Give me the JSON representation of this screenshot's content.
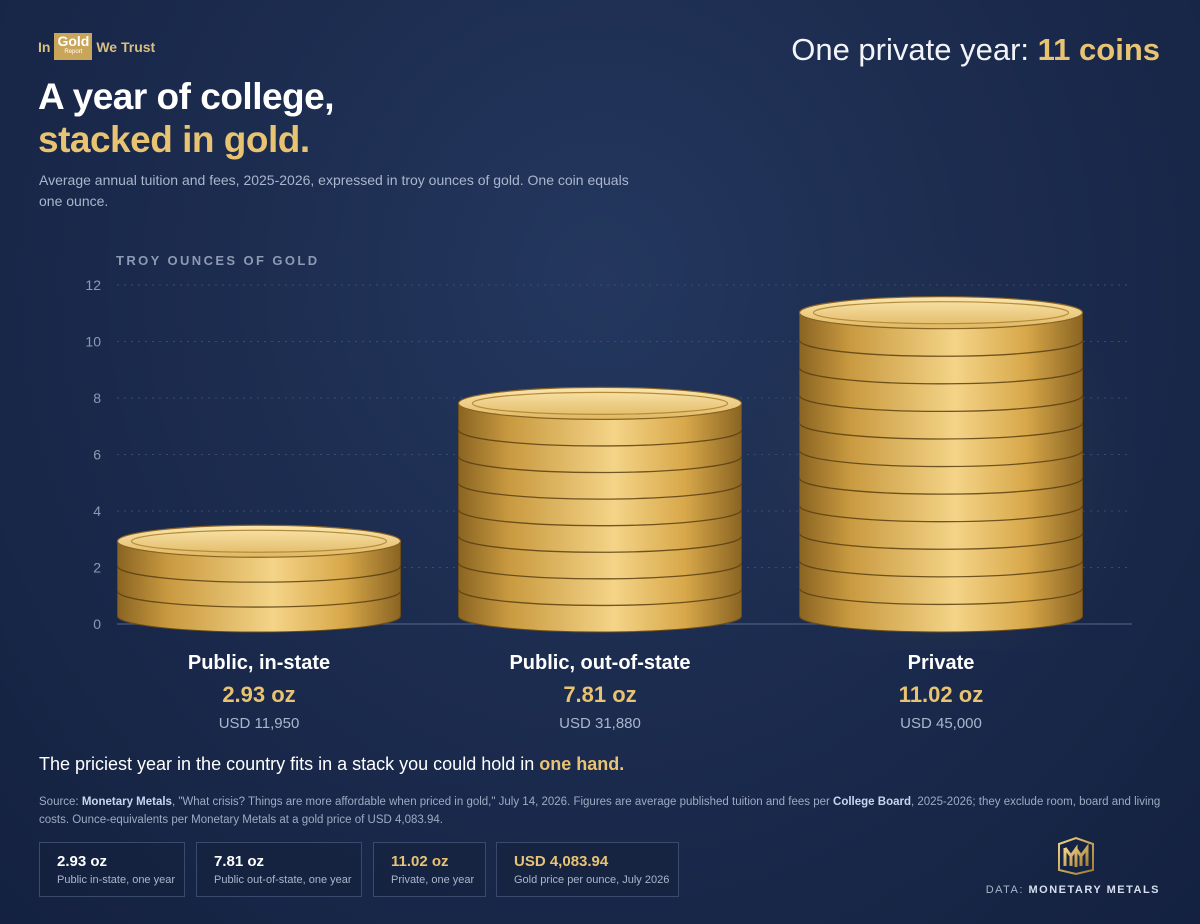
{
  "brand": {
    "prefix": "In",
    "gold": "Gold",
    "suffix": "We Trust",
    "report": "Report"
  },
  "headline": {
    "text": "One private year:",
    "value": "11 coins"
  },
  "title": {
    "line1": "A year of college,",
    "line2": "stacked in gold."
  },
  "subtitle": "Average annual tuition and fees, 2025-2026, expressed in troy ounces of gold. One coin equals one ounce.",
  "chart_data": {
    "type": "bar",
    "ylabel": "TROY OUNCES OF GOLD",
    "ylim": [
      0,
      12
    ],
    "yticks": [
      0,
      2,
      4,
      6,
      8,
      10,
      12
    ],
    "grid": true,
    "categories": [
      "Public, in-state",
      "Public, out-of-state",
      "Private"
    ],
    "values": [
      2.93,
      7.81,
      11.02
    ],
    "value_labels": [
      "2.93 oz",
      "7.81 oz",
      "11.02 oz"
    ],
    "usd_labels": [
      "USD 11,950",
      "USD 31,880",
      "USD 45,000"
    ],
    "coins": [
      3,
      8,
      11
    ],
    "colors": {
      "coin_light": "#f4d488",
      "coin_mid": "#d8a84a",
      "coin_dark": "#8a6422",
      "grid": "#3c4c70",
      "tick": "#8e9ab3"
    }
  },
  "takeaway": {
    "text": "The priciest year in the country fits in a stack you could hold in",
    "highlight": "one hand."
  },
  "source": {
    "prefix": "Source:",
    "publisher": "Monetary Metals",
    "middle": ", \"What crisis? Things are more affordable when priced in gold,\" July 14, 2026. Figures are average published tuition and fees per",
    "org": "College Board",
    "suffix": ", 2025-2026; they exclude room, board and living costs. Ounce-equivalents per Monetary Metals at a gold price of USD 4,083.94."
  },
  "stats": [
    {
      "value": "2.93 oz",
      "desc": "Public in-state, one year",
      "gold": false
    },
    {
      "value": "7.81 oz",
      "desc": "Public out-of-state, one year",
      "gold": false
    },
    {
      "value": "11.02 oz",
      "desc": "Private, one year",
      "gold": true
    },
    {
      "value": "USD 4,083.94",
      "desc": "Gold price per ounce, July 2026",
      "gold": true
    }
  ],
  "credit": {
    "prefix": "DATA:",
    "name": "MONETARY METALS"
  }
}
